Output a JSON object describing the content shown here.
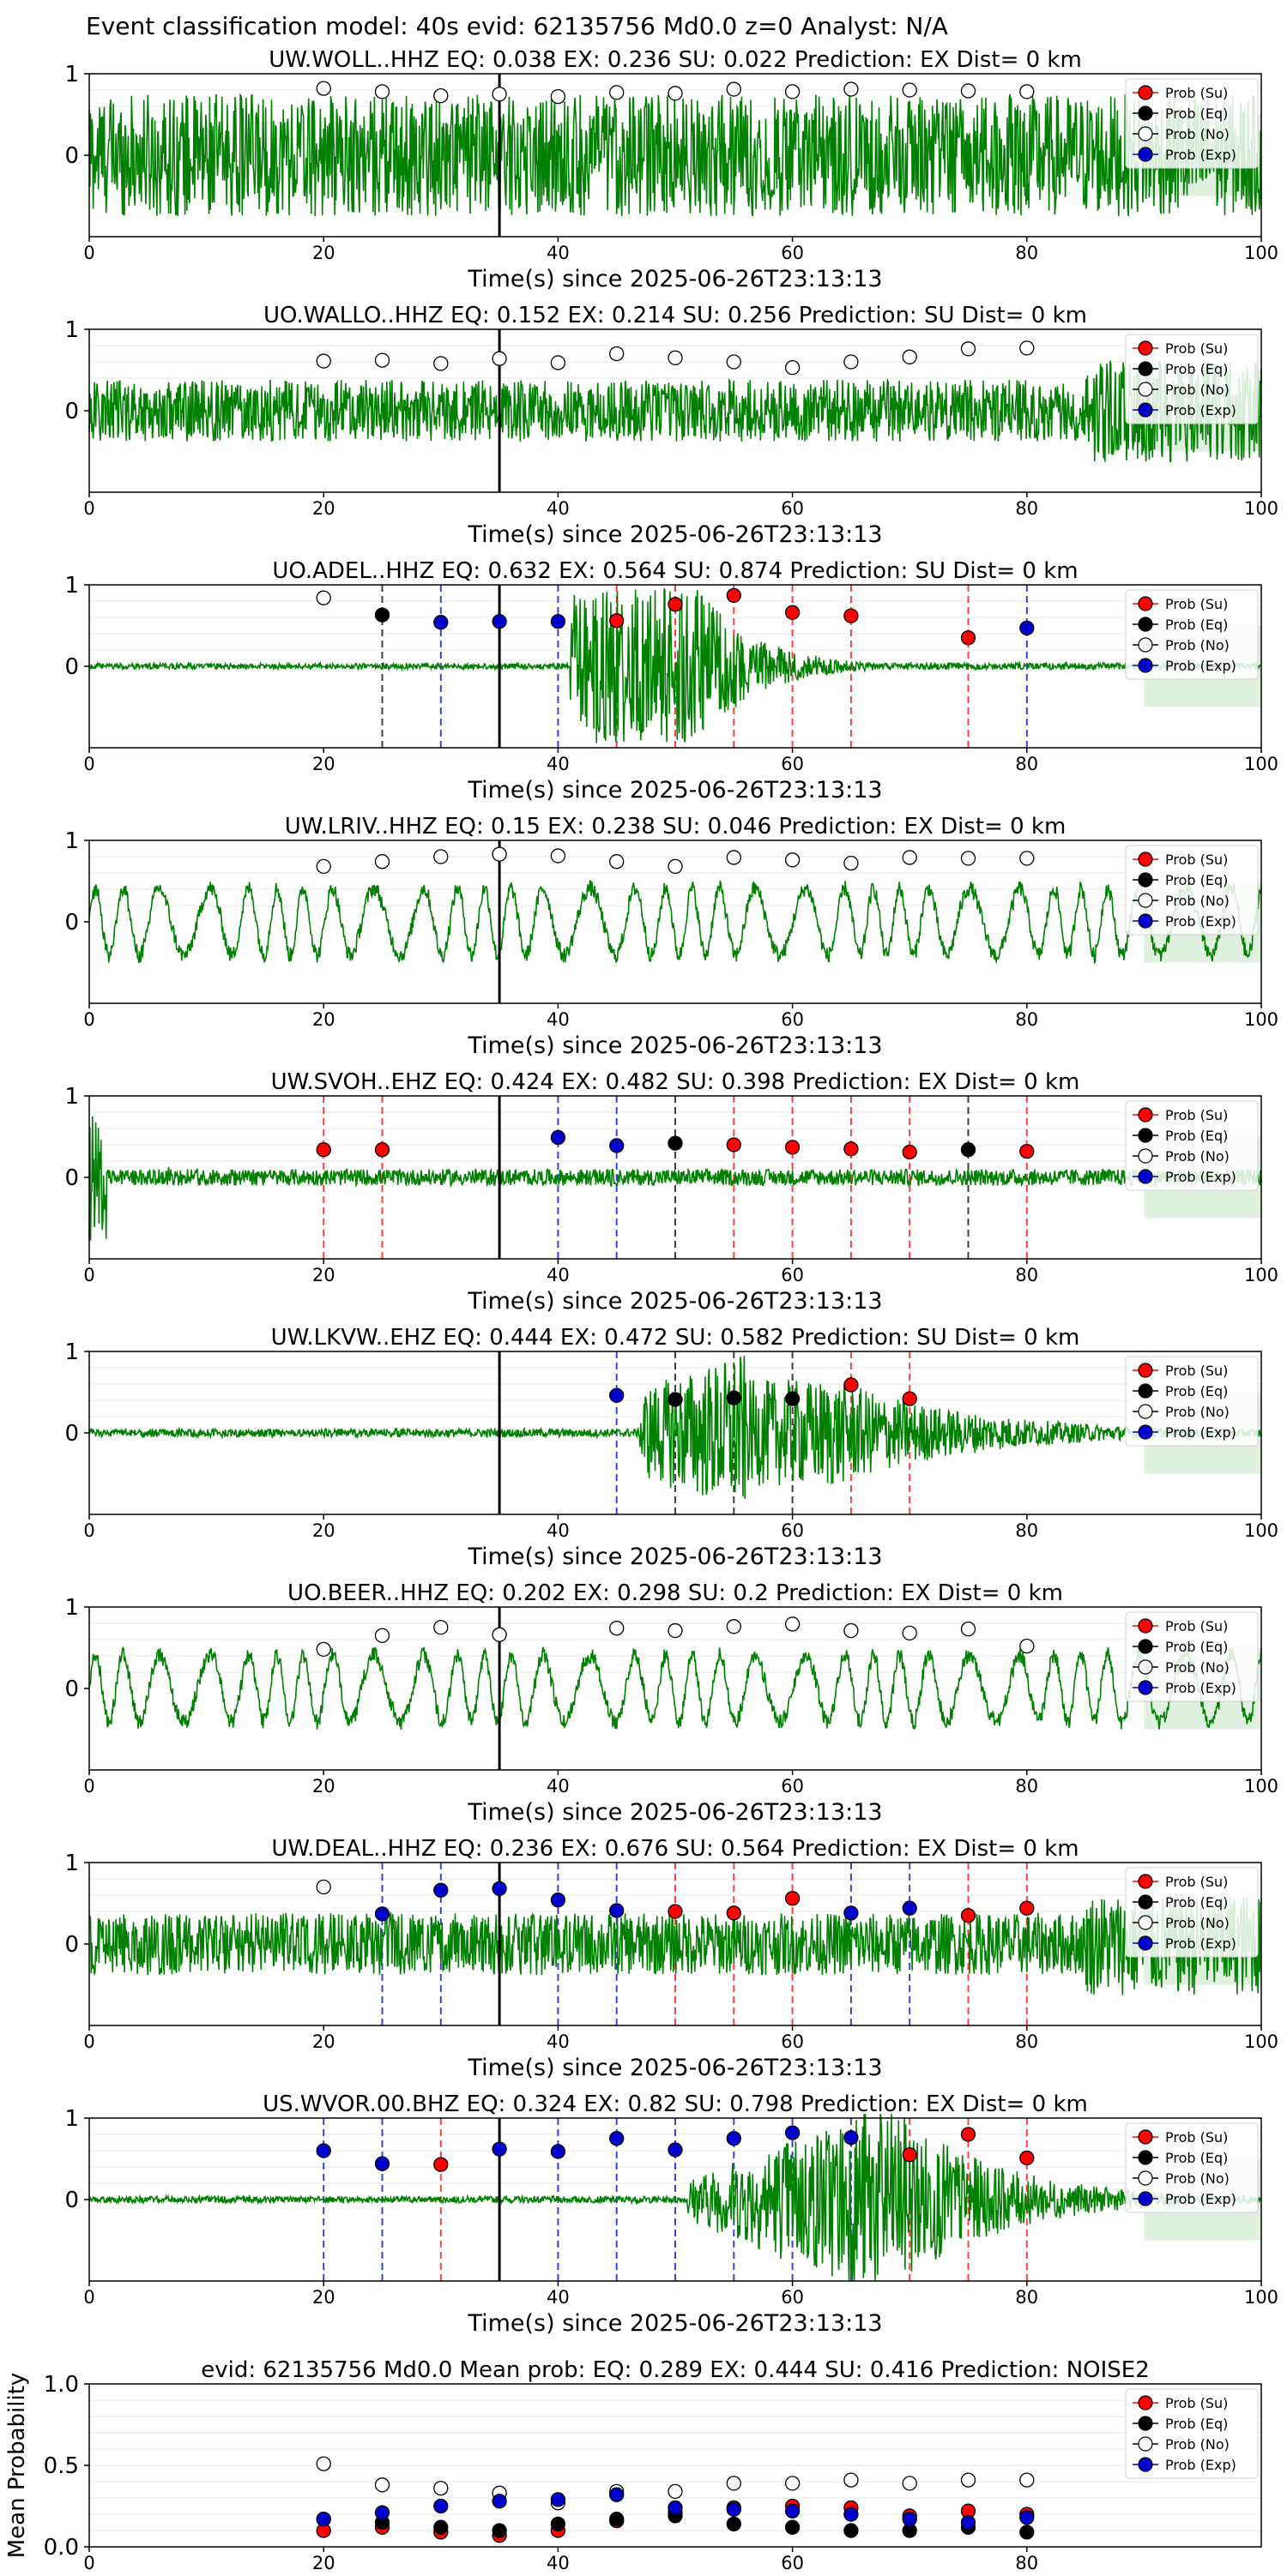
{
  "main_title": "Event classification model: 40s evid: 62135756 Md0.0 z=0 Analyst: N/A",
  "legend_labels": [
    "Prob (Su)",
    "Prob (Eq)",
    "Prob (No)",
    "Prob (Exp)"
  ],
  "colors": {
    "su": "#ff0000",
    "eq": "#000000",
    "no": "#ffffff",
    "exp": "#0000cc",
    "trace": "#008000",
    "fill": "#b8deb8"
  },
  "chart_data": [
    {
      "type": "scatter",
      "station": "UW.WOLL..HHZ",
      "title": "UW.WOLL..HHZ   EQ: 0.038  EX: 0.236  SU: 0.022   Prediction: EX    Dist= 0 km",
      "xlabel": "Time(s) since 2025-06-26T23:13:13",
      "xlim": [
        0,
        100
      ],
      "ylim": [
        -1,
        1
      ],
      "xticks": [
        "0",
        "20",
        "40",
        "60",
        "80",
        "100"
      ],
      "yticks": [
        "0",
        "1"
      ],
      "pick_time": 35,
      "waveform": "noisy-dense",
      "points": [
        {
          "t": 20,
          "p": 0.82,
          "c": "no"
        },
        {
          "t": 25,
          "p": 0.78,
          "c": "no"
        },
        {
          "t": 30,
          "p": 0.73,
          "c": "no"
        },
        {
          "t": 35,
          "p": 0.75,
          "c": "no"
        },
        {
          "t": 40,
          "p": 0.72,
          "c": "no"
        },
        {
          "t": 45,
          "p": 0.77,
          "c": "no"
        },
        {
          "t": 50,
          "p": 0.76,
          "c": "no"
        },
        {
          "t": 55,
          "p": 0.81,
          "c": "no"
        },
        {
          "t": 60,
          "p": 0.78,
          "c": "no"
        },
        {
          "t": 65,
          "p": 0.81,
          "c": "no"
        },
        {
          "t": 70,
          "p": 0.8,
          "c": "no"
        },
        {
          "t": 75,
          "p": 0.79,
          "c": "no"
        },
        {
          "t": 80,
          "p": 0.78,
          "c": "no"
        }
      ]
    },
    {
      "type": "scatter",
      "station": "UO.WALLO..HHZ",
      "title": "UO.WALLO..HHZ   EQ: 0.152  EX: 0.214  SU: 0.256   Prediction: SU    Dist= 0 km",
      "xlabel": "Time(s) since 2025-06-26T23:13:13",
      "xlim": [
        0,
        100
      ],
      "ylim": [
        -1,
        1
      ],
      "xticks": [
        "0",
        "20",
        "40",
        "60",
        "80",
        "100"
      ],
      "yticks": [
        "0",
        "1"
      ],
      "pick_time": 35,
      "waveform": "noisy-medium",
      "points": [
        {
          "t": 20,
          "p": 0.61,
          "c": "no"
        },
        {
          "t": 25,
          "p": 0.62,
          "c": "no"
        },
        {
          "t": 30,
          "p": 0.58,
          "c": "no"
        },
        {
          "t": 35,
          "p": 0.64,
          "c": "no"
        },
        {
          "t": 40,
          "p": 0.59,
          "c": "no"
        },
        {
          "t": 45,
          "p": 0.7,
          "c": "no"
        },
        {
          "t": 50,
          "p": 0.65,
          "c": "no"
        },
        {
          "t": 55,
          "p": 0.6,
          "c": "no"
        },
        {
          "t": 60,
          "p": 0.53,
          "c": "no"
        },
        {
          "t": 65,
          "p": 0.6,
          "c": "no"
        },
        {
          "t": 70,
          "p": 0.66,
          "c": "no"
        },
        {
          "t": 75,
          "p": 0.76,
          "c": "no"
        },
        {
          "t": 80,
          "p": 0.77,
          "c": "no"
        }
      ]
    },
    {
      "type": "scatter",
      "station": "UO.ADEL..HHZ",
      "title": "UO.ADEL..HHZ   EQ: 0.632  EX: 0.564  SU: 0.874   Prediction: SU    Dist= 0 km",
      "xlabel": "Time(s) since 2025-06-26T23:13:13",
      "xlim": [
        0,
        100
      ],
      "ylim": [
        -1,
        1
      ],
      "xticks": [
        "0",
        "20",
        "40",
        "60",
        "80",
        "100"
      ],
      "yticks": [
        "0",
        "1"
      ],
      "pick_time": 35,
      "waveform": "event-early",
      "points": [
        {
          "t": 20,
          "p": 0.84,
          "c": "no"
        },
        {
          "t": 25,
          "p": 0.63,
          "c": "eq"
        },
        {
          "t": 30,
          "p": 0.54,
          "c": "exp"
        },
        {
          "t": 35,
          "p": 0.55,
          "c": "exp"
        },
        {
          "t": 40,
          "p": 0.55,
          "c": "exp"
        },
        {
          "t": 45,
          "p": 0.56,
          "c": "su"
        },
        {
          "t": 50,
          "p": 0.76,
          "c": "su"
        },
        {
          "t": 55,
          "p": 0.87,
          "c": "su"
        },
        {
          "t": 60,
          "p": 0.66,
          "c": "su"
        },
        {
          "t": 65,
          "p": 0.62,
          "c": "su"
        },
        {
          "t": 75,
          "p": 0.35,
          "c": "su"
        },
        {
          "t": 80,
          "p": 0.47,
          "c": "exp"
        }
      ]
    },
    {
      "type": "scatter",
      "station": "UW.LRIV..HHZ",
      "title": "UW.LRIV..HHZ   EQ: 0.15  EX: 0.238  SU: 0.046   Prediction: EX    Dist= 0 km",
      "xlabel": "Time(s) since 2025-06-26T23:13:13",
      "xlim": [
        0,
        100
      ],
      "ylim": [
        -1,
        1
      ],
      "xticks": [
        "0",
        "20",
        "40",
        "60",
        "80",
        "100"
      ],
      "yticks": [
        "0",
        "1"
      ],
      "pick_time": 35,
      "waveform": "oscillating",
      "points": [
        {
          "t": 20,
          "p": 0.68,
          "c": "no"
        },
        {
          "t": 25,
          "p": 0.74,
          "c": "no"
        },
        {
          "t": 30,
          "p": 0.8,
          "c": "no"
        },
        {
          "t": 35,
          "p": 0.83,
          "c": "no"
        },
        {
          "t": 40,
          "p": 0.81,
          "c": "no"
        },
        {
          "t": 45,
          "p": 0.74,
          "c": "no"
        },
        {
          "t": 50,
          "p": 0.68,
          "c": "no"
        },
        {
          "t": 55,
          "p": 0.79,
          "c": "no"
        },
        {
          "t": 60,
          "p": 0.76,
          "c": "no"
        },
        {
          "t": 65,
          "p": 0.72,
          "c": "no"
        },
        {
          "t": 70,
          "p": 0.79,
          "c": "no"
        },
        {
          "t": 75,
          "p": 0.78,
          "c": "no"
        },
        {
          "t": 80,
          "p": 0.78,
          "c": "no"
        }
      ]
    },
    {
      "type": "scatter",
      "station": "UW.SVOH..EHZ",
      "title": "UW.SVOH..EHZ   EQ: 0.424  EX: 0.482  SU: 0.398   Prediction: EX    Dist= 0 km",
      "xlabel": "Time(s) since 2025-06-26T23:13:13",
      "xlim": [
        0,
        100
      ],
      "ylim": [
        -1,
        1
      ],
      "xticks": [
        "0",
        "20",
        "40",
        "60",
        "80",
        "100"
      ],
      "yticks": [
        "0",
        "1"
      ],
      "pick_time": 35,
      "waveform": "quiet-spiky",
      "points": [
        {
          "t": 20,
          "p": 0.34,
          "c": "su"
        },
        {
          "t": 25,
          "p": 0.34,
          "c": "su"
        },
        {
          "t": 40,
          "p": 0.49,
          "c": "exp"
        },
        {
          "t": 45,
          "p": 0.39,
          "c": "exp"
        },
        {
          "t": 50,
          "p": 0.42,
          "c": "eq"
        },
        {
          "t": 55,
          "p": 0.4,
          "c": "su"
        },
        {
          "t": 60,
          "p": 0.37,
          "c": "su"
        },
        {
          "t": 65,
          "p": 0.35,
          "c": "su"
        },
        {
          "t": 70,
          "p": 0.31,
          "c": "su"
        },
        {
          "t": 75,
          "p": 0.34,
          "c": "eq"
        },
        {
          "t": 80,
          "p": 0.32,
          "c": "su"
        }
      ]
    },
    {
      "type": "scatter",
      "station": "UW.LKVW..EHZ",
      "title": "UW.LKVW..EHZ   EQ: 0.444  EX: 0.472  SU: 0.582   Prediction: SU    Dist= 0 km",
      "xlabel": "Time(s) since 2025-06-26T23:13:13",
      "xlim": [
        0,
        100
      ],
      "ylim": [
        -1,
        1
      ],
      "xticks": [
        "0",
        "20",
        "40",
        "60",
        "80",
        "100"
      ],
      "yticks": [
        "0",
        "1"
      ],
      "pick_time": 35,
      "waveform": "event-late",
      "points": [
        {
          "t": 45,
          "p": 0.46,
          "c": "exp"
        },
        {
          "t": 50,
          "p": 0.41,
          "c": "eq"
        },
        {
          "t": 55,
          "p": 0.43,
          "c": "eq"
        },
        {
          "t": 60,
          "p": 0.42,
          "c": "eq"
        },
        {
          "t": 65,
          "p": 0.59,
          "c": "su"
        },
        {
          "t": 70,
          "p": 0.42,
          "c": "su"
        }
      ]
    },
    {
      "type": "scatter",
      "station": "UO.BEER..HHZ",
      "title": "UO.BEER..HHZ   EQ: 0.202  EX: 0.298  SU: 0.2   Prediction: EX    Dist= 0 km",
      "xlabel": "Time(s) since 2025-06-26T23:13:13",
      "xlim": [
        0,
        100
      ],
      "ylim": [
        -1,
        1
      ],
      "xticks": [
        "0",
        "20",
        "40",
        "60",
        "80",
        "100"
      ],
      "yticks": [
        "0",
        "1"
      ],
      "pick_time": 35,
      "waveform": "oscillating",
      "points": [
        {
          "t": 20,
          "p": 0.48,
          "c": "no"
        },
        {
          "t": 25,
          "p": 0.65,
          "c": "no"
        },
        {
          "t": 30,
          "p": 0.75,
          "c": "no"
        },
        {
          "t": 35,
          "p": 0.66,
          "c": "no"
        },
        {
          "t": 45,
          "p": 0.74,
          "c": "no"
        },
        {
          "t": 50,
          "p": 0.71,
          "c": "no"
        },
        {
          "t": 55,
          "p": 0.76,
          "c": "no"
        },
        {
          "t": 60,
          "p": 0.79,
          "c": "no"
        },
        {
          "t": 65,
          "p": 0.71,
          "c": "no"
        },
        {
          "t": 70,
          "p": 0.68,
          "c": "no"
        },
        {
          "t": 75,
          "p": 0.73,
          "c": "no"
        },
        {
          "t": 80,
          "p": 0.52,
          "c": "no"
        }
      ]
    },
    {
      "type": "scatter",
      "station": "UW.DEAL..HHZ",
      "title": "UW.DEAL..HHZ   EQ: 0.236  EX: 0.676  SU: 0.564   Prediction: EX    Dist= 0 km",
      "xlabel": "Time(s) since 2025-06-26T23:13:13",
      "xlim": [
        0,
        100
      ],
      "ylim": [
        -1,
        1
      ],
      "xticks": [
        "0",
        "20",
        "40",
        "60",
        "80",
        "100"
      ],
      "yticks": [
        "0",
        "1"
      ],
      "pick_time": 35,
      "waveform": "noisy-medium",
      "points": [
        {
          "t": 20,
          "p": 0.7,
          "c": "no"
        },
        {
          "t": 25,
          "p": 0.37,
          "c": "exp"
        },
        {
          "t": 30,
          "p": 0.66,
          "c": "exp"
        },
        {
          "t": 35,
          "p": 0.68,
          "c": "exp"
        },
        {
          "t": 40,
          "p": 0.54,
          "c": "exp"
        },
        {
          "t": 45,
          "p": 0.41,
          "c": "exp"
        },
        {
          "t": 50,
          "p": 0.4,
          "c": "su"
        },
        {
          "t": 55,
          "p": 0.38,
          "c": "su"
        },
        {
          "t": 60,
          "p": 0.56,
          "c": "su"
        },
        {
          "t": 65,
          "p": 0.38,
          "c": "exp"
        },
        {
          "t": 70,
          "p": 0.44,
          "c": "exp"
        },
        {
          "t": 75,
          "p": 0.35,
          "c": "su"
        },
        {
          "t": 80,
          "p": 0.44,
          "c": "su"
        }
      ]
    },
    {
      "type": "scatter",
      "station": "US.WVOR.00.BHZ",
      "title": "US.WVOR.00.BHZ   EQ: 0.324  EX: 0.82  SU: 0.798   Prediction: EX    Dist= 0 km",
      "xlabel": "Time(s) since 2025-06-26T23:13:13",
      "xlim": [
        0,
        100
      ],
      "ylim": [
        -1,
        1
      ],
      "xticks": [
        "0",
        "20",
        "40",
        "60",
        "80",
        "100"
      ],
      "yticks": [
        "0",
        "1"
      ],
      "pick_time": 35,
      "waveform": "event-mid",
      "points": [
        {
          "t": 20,
          "p": 0.6,
          "c": "exp"
        },
        {
          "t": 25,
          "p": 0.44,
          "c": "exp"
        },
        {
          "t": 30,
          "p": 0.43,
          "c": "su"
        },
        {
          "t": 35,
          "p": 0.62,
          "c": "exp"
        },
        {
          "t": 40,
          "p": 0.59,
          "c": "exp"
        },
        {
          "t": 45,
          "p": 0.75,
          "c": "exp"
        },
        {
          "t": 50,
          "p": 0.61,
          "c": "exp"
        },
        {
          "t": 55,
          "p": 0.75,
          "c": "exp"
        },
        {
          "t": 60,
          "p": 0.82,
          "c": "exp"
        },
        {
          "t": 65,
          "p": 0.76,
          "c": "exp"
        },
        {
          "t": 70,
          "p": 0.55,
          "c": "su"
        },
        {
          "t": 75,
          "p": 0.8,
          "c": "su"
        },
        {
          "t": 80,
          "p": 0.51,
          "c": "su"
        }
      ]
    },
    {
      "type": "scatter",
      "station": "mean",
      "title": "evid: 62135756  Md0.0   Mean prob:    EQ: 0.289  EX: 0.444  SU: 0.416   Prediction: NOISE2",
      "ylabel": "Mean Probability",
      "xlim": [
        0,
        100
      ],
      "ylim": [
        0,
        1
      ],
      "xticks": [
        "0",
        "20",
        "40",
        "60",
        "80"
      ],
      "yticks": [
        "0.0",
        "0.5",
        "1.0"
      ],
      "series": [
        {
          "name": "Prob (Su)",
          "c": "su",
          "x": [
            20,
            25,
            30,
            35,
            40,
            45,
            50,
            55,
            60,
            65,
            70,
            75,
            80
          ],
          "y": [
            0.1,
            0.12,
            0.09,
            0.07,
            0.1,
            0.16,
            0.21,
            0.24,
            0.25,
            0.24,
            0.19,
            0.22,
            0.2
          ]
        },
        {
          "name": "Prob (Eq)",
          "c": "eq",
          "x": [
            20,
            25,
            30,
            35,
            40,
            45,
            50,
            55,
            60,
            65,
            70,
            75,
            80
          ],
          "y": [
            0.17,
            0.15,
            0.12,
            0.1,
            0.14,
            0.17,
            0.19,
            0.14,
            0.12,
            0.1,
            0.1,
            0.12,
            0.09
          ]
        },
        {
          "name": "Prob (No)",
          "c": "no",
          "x": [
            20,
            25,
            30,
            35,
            40,
            45,
            50,
            55,
            60,
            65,
            70,
            75,
            80
          ],
          "y": [
            0.51,
            0.38,
            0.36,
            0.33,
            0.27,
            0.34,
            0.34,
            0.39,
            0.39,
            0.41,
            0.39,
            0.41,
            0.41
          ]
        },
        {
          "name": "Prob (Exp)",
          "c": "exp",
          "x": [
            20,
            25,
            30,
            35,
            40,
            45,
            50,
            55,
            60,
            65,
            70,
            75,
            80
          ],
          "y": [
            0.17,
            0.21,
            0.25,
            0.28,
            0.29,
            0.32,
            0.24,
            0.23,
            0.22,
            0.2,
            0.17,
            0.15,
            0.18
          ]
        }
      ]
    }
  ]
}
